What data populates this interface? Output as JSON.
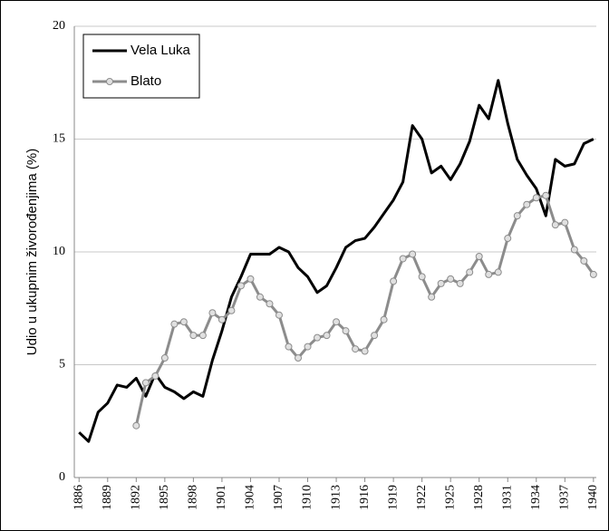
{
  "chart_data": {
    "type": "line",
    "y_label": "Udio  u ukupnim  živorođenjima  (%)",
    "x": [
      1886,
      1887,
      1888,
      1889,
      1890,
      1891,
      1892,
      1893,
      1894,
      1895,
      1896,
      1897,
      1898,
      1899,
      1900,
      1901,
      1902,
      1903,
      1904,
      1905,
      1906,
      1907,
      1908,
      1909,
      1910,
      1911,
      1912,
      1913,
      1914,
      1915,
      1916,
      1917,
      1918,
      1919,
      1920,
      1921,
      1922,
      1923,
      1924,
      1925,
      1926,
      1927,
      1928,
      1929,
      1930,
      1931,
      1932,
      1933,
      1934,
      1935,
      1936,
      1937,
      1938,
      1939,
      1940
    ],
    "series": [
      {
        "name": "Vela Luka",
        "color": "#000000",
        "marker": false,
        "values": [
          2.0,
          1.6,
          2.9,
          3.3,
          4.1,
          4.0,
          4.4,
          3.6,
          4.6,
          4.0,
          3.8,
          3.5,
          3.8,
          3.6,
          5.2,
          6.5,
          8.0,
          8.9,
          9.9,
          9.9,
          9.9,
          10.2,
          10.0,
          9.3,
          8.9,
          8.2,
          8.5,
          9.3,
          10.2,
          10.5,
          10.6,
          11.1,
          11.7,
          12.3,
          13.1,
          15.6,
          15.0,
          13.5,
          13.8,
          13.2,
          13.9,
          14.9,
          16.5,
          15.9,
          17.6,
          15.7,
          14.1,
          13.4,
          12.8,
          11.6,
          14.1,
          13.8,
          13.9,
          14.8,
          15.0
        ]
      },
      {
        "name": "Blato",
        "color": "#8c8c8c",
        "marker": true,
        "values": [
          null,
          null,
          null,
          null,
          null,
          null,
          2.3,
          4.2,
          4.5,
          5.3,
          6.8,
          6.9,
          6.3,
          6.3,
          7.3,
          7.0,
          7.4,
          8.5,
          8.8,
          8.0,
          7.7,
          7.2,
          5.8,
          5.3,
          5.8,
          6.2,
          6.3,
          6.9,
          6.5,
          5.7,
          5.6,
          6.3,
          7.0,
          8.7,
          9.7,
          9.9,
          8.9,
          8.0,
          8.6,
          8.8,
          8.6,
          9.1,
          9.8,
          9.0,
          9.1,
          10.6,
          11.6,
          12.1,
          12.4,
          12.5,
          11.2,
          11.3,
          10.1,
          9.6,
          9.0
        ]
      }
    ],
    "xlim": [
      1885.5,
      1940.3
    ],
    "xticks": [
      1886,
      1889,
      1892,
      1895,
      1898,
      1901,
      1904,
      1907,
      1910,
      1913,
      1916,
      1919,
      1922,
      1925,
      1928,
      1931,
      1934,
      1937,
      1940
    ],
    "ylim": [
      0,
      20
    ],
    "yticks": [
      0,
      5,
      10,
      15,
      20
    ],
    "grid": true,
    "legend": "upper left"
  }
}
